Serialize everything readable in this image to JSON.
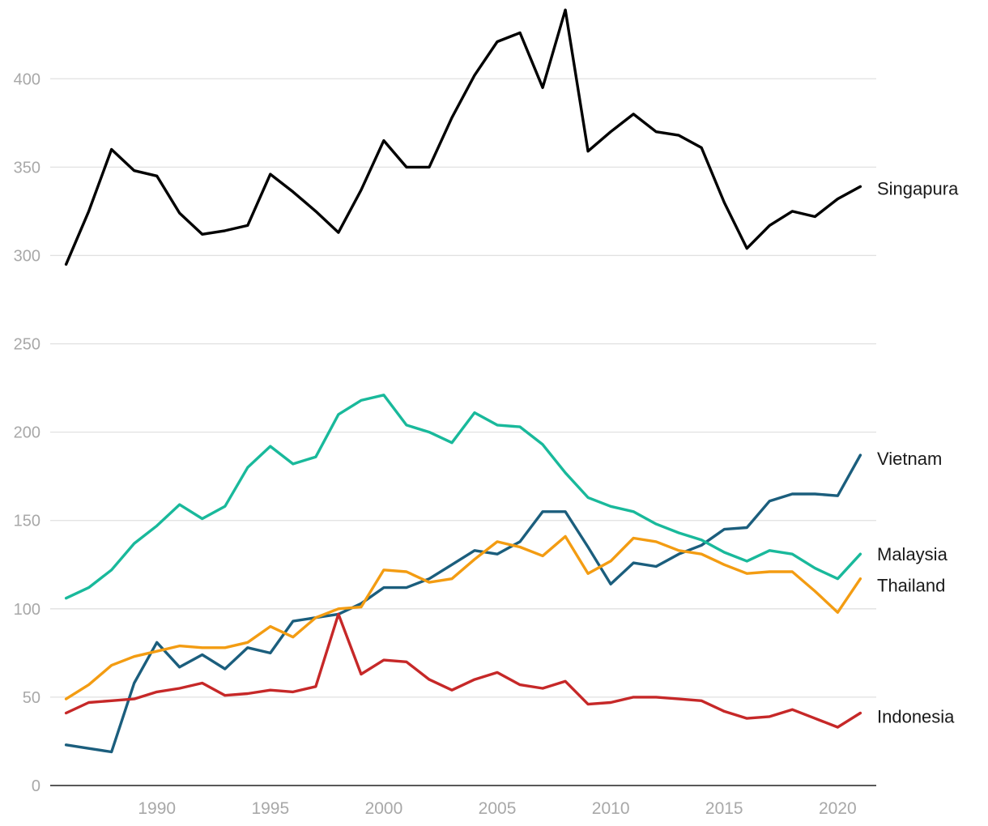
{
  "chart_data": {
    "type": "line",
    "title": "",
    "xlabel": "",
    "ylabel": "",
    "x": [
      1986,
      1987,
      1988,
      1989,
      1990,
      1991,
      1992,
      1993,
      1994,
      1995,
      1996,
      1997,
      1998,
      1999,
      2000,
      2001,
      2002,
      2003,
      2004,
      2005,
      2006,
      2007,
      2008,
      2009,
      2010,
      2011,
      2012,
      2013,
      2014,
      2015,
      2016,
      2017,
      2018,
      2019,
      2020,
      2021
    ],
    "xlim": [
      1985.3,
      2021.7
    ],
    "ylim": [
      0,
      440
    ],
    "y_ticks": [
      0,
      50,
      100,
      150,
      200,
      250,
      300,
      350,
      400
    ],
    "x_ticks": [
      1990,
      1995,
      2000,
      2005,
      2010,
      2015,
      2020
    ],
    "grid": true,
    "legend": "direct labels at line ends (right)",
    "series": [
      {
        "name": "Singapura",
        "color": "#000000",
        "values": [
          295,
          325,
          360,
          348,
          345,
          324,
          312,
          314,
          317,
          346,
          336,
          325,
          313,
          337,
          365,
          350,
          350,
          378,
          402,
          421,
          426,
          395,
          439,
          359,
          370,
          380,
          370,
          368,
          361,
          330,
          304,
          317,
          325,
          322,
          332,
          339
        ]
      },
      {
        "name": "Vietnam",
        "color": "#1b5e7d",
        "values": [
          23,
          21,
          19,
          58,
          81,
          67,
          74,
          66,
          78,
          75,
          93,
          95,
          97,
          103,
          112,
          112,
          117,
          125,
          133,
          131,
          138,
          155,
          155,
          135,
          114,
          126,
          124,
          131,
          136,
          145,
          146,
          161,
          165,
          165,
          164,
          187
        ]
      },
      {
        "name": "Malaysia",
        "color": "#19b99b",
        "values": [
          106,
          112,
          122,
          137,
          147,
          159,
          151,
          158,
          180,
          192,
          182,
          186,
          210,
          218,
          221,
          204,
          200,
          194,
          211,
          204,
          203,
          193,
          177,
          163,
          158,
          155,
          148,
          143,
          139,
          132,
          127,
          133,
          131,
          123,
          117,
          131
        ]
      },
      {
        "name": "Thailand",
        "color": "#f39c12",
        "values": [
          49,
          57,
          68,
          73,
          76,
          79,
          78,
          78,
          81,
          90,
          84,
          95,
          100,
          101,
          122,
          121,
          115,
          117,
          128,
          138,
          135,
          130,
          141,
          120,
          127,
          140,
          138,
          133,
          131,
          125,
          120,
          121,
          121,
          110,
          98,
          117
        ]
      },
      {
        "name": "Indonesia",
        "color": "#c62828",
        "values": [
          41,
          47,
          48,
          49,
          53,
          55,
          58,
          51,
          52,
          54,
          53,
          56,
          97,
          63,
          71,
          70,
          60,
          54,
          60,
          64,
          57,
          55,
          59,
          46,
          47,
          50,
          50,
          49,
          48,
          42,
          38,
          39,
          43,
          38,
          33,
          41
        ]
      }
    ]
  }
}
